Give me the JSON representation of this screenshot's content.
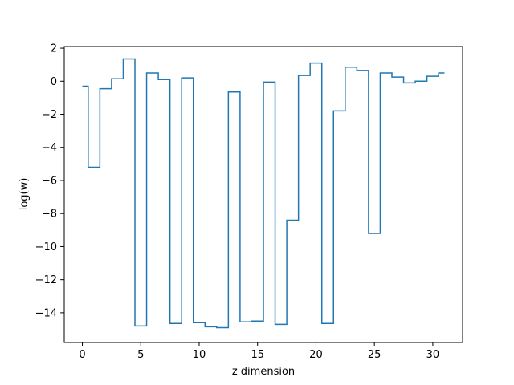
{
  "chart_data": {
    "type": "line",
    "drawstyle": "steps-mid",
    "title": "",
    "xlabel": "z dimension",
    "ylabel": "log(w)",
    "xlim": [
      -1.55,
      32.55
    ],
    "ylim": [
      -15.8,
      2.1
    ],
    "xticks": [
      0,
      5,
      10,
      15,
      20,
      25,
      30
    ],
    "yticks": [
      2,
      0,
      -2,
      -4,
      -6,
      -8,
      -10,
      -12,
      -14
    ],
    "grid": false,
    "legend": "none",
    "series": [
      {
        "color": "#1f77b4",
        "x": [
          0,
          1,
          2,
          3,
          4,
          5,
          6,
          7,
          8,
          9,
          10,
          11,
          12,
          13,
          14,
          15,
          16,
          17,
          18,
          19,
          20,
          21,
          22,
          23,
          24,
          25,
          26,
          27,
          28,
          29,
          30,
          31
        ],
        "y": [
          -0.3,
          -5.2,
          -0.45,
          0.15,
          1.35,
          -14.8,
          0.5,
          0.1,
          -14.65,
          0.2,
          -14.6,
          -14.85,
          -14.9,
          -0.65,
          -14.55,
          -14.5,
          -0.05,
          -14.7,
          -8.4,
          0.35,
          1.1,
          -14.65,
          -1.8,
          0.85,
          0.65,
          -9.2,
          0.5,
          0.25,
          -0.1,
          0.0,
          0.3,
          0.5
        ]
      }
    ]
  }
}
